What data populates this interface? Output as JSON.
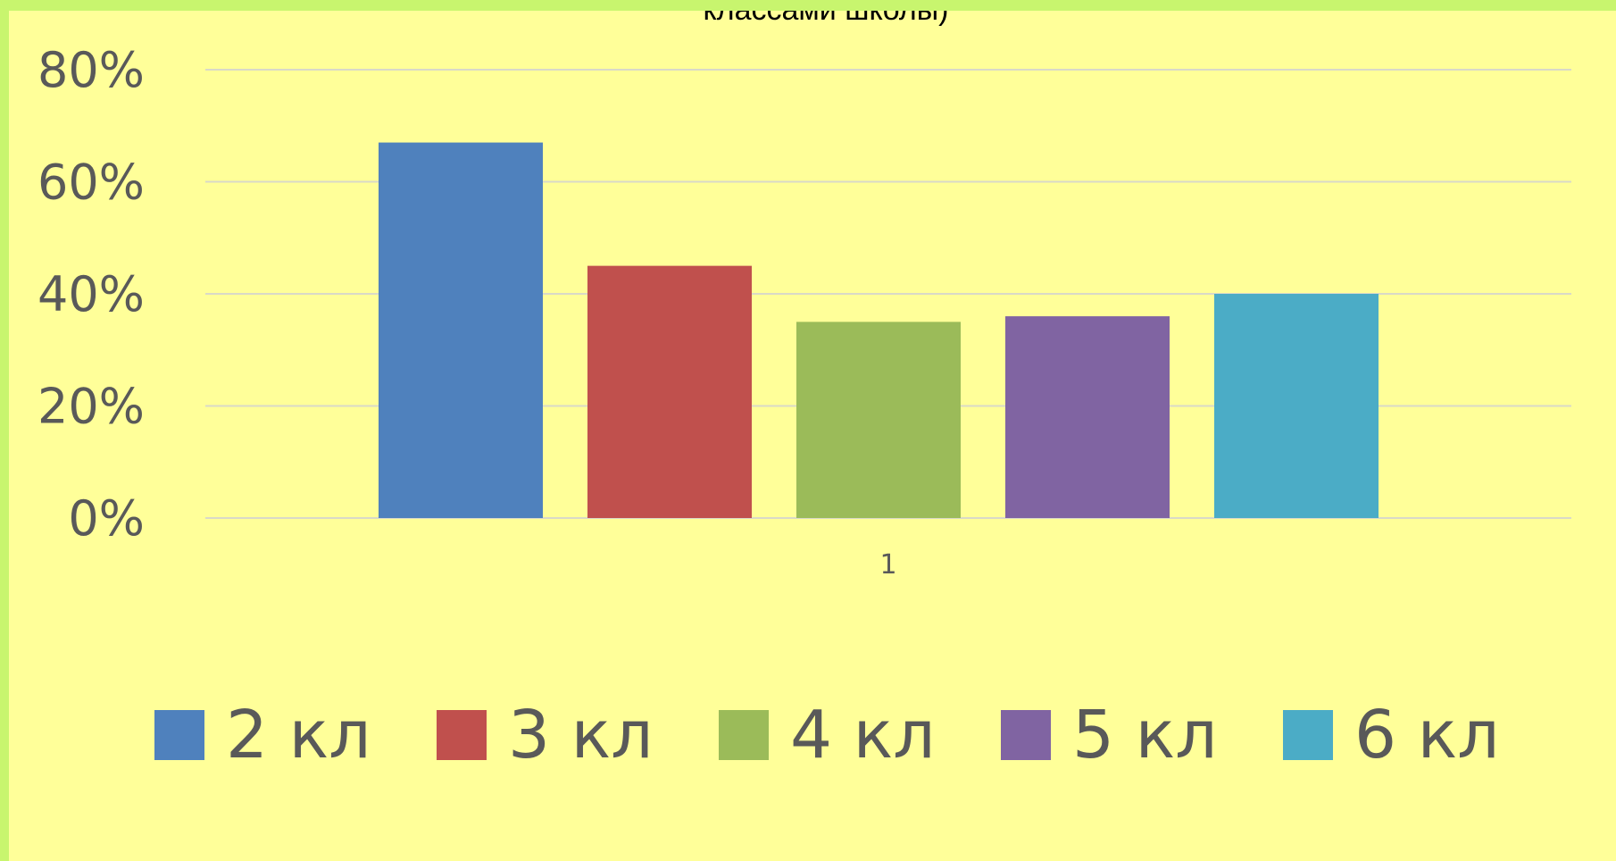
{
  "chart_data": {
    "type": "bar",
    "title": "классами школы)",
    "categories": [
      "1"
    ],
    "series": [
      {
        "name": "2 кл",
        "values": [
          0.67
        ],
        "color": "#4f81bd"
      },
      {
        "name": "3 кл",
        "values": [
          0.45
        ],
        "color": "#c0504d"
      },
      {
        "name": "4 кл",
        "values": [
          0.35
        ],
        "color": "#9bbb59"
      },
      {
        "name": "5 кл",
        "values": [
          0.36
        ],
        "color": "#8064a2"
      },
      {
        "name": "6 кл",
        "values": [
          0.4
        ],
        "color": "#4bacc6"
      }
    ],
    "ylim": [
      0,
      0.8
    ],
    "yticks": [
      "0%",
      "20%",
      "40%",
      "60%",
      "80%"
    ],
    "grid": true,
    "legend": "bottom"
  },
  "colors": {
    "background": "#ffff99",
    "frame": "#c8f56e"
  }
}
